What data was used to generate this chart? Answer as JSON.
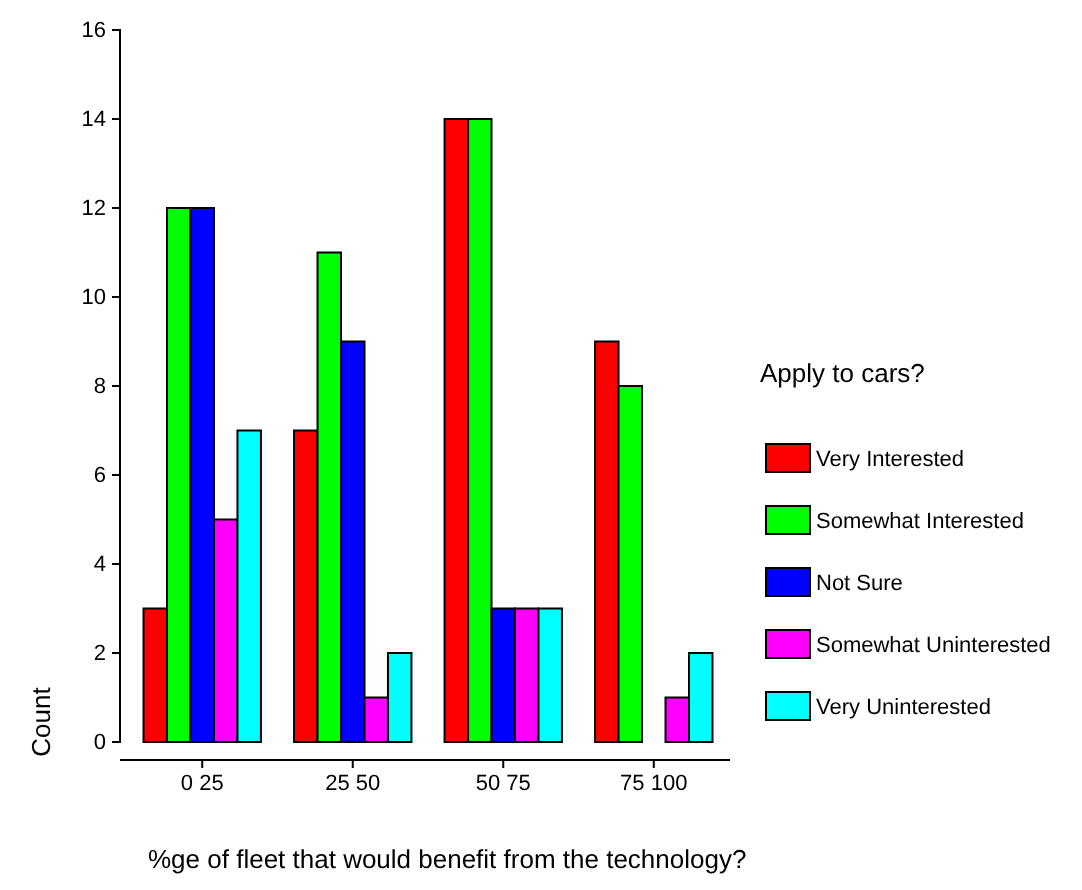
{
  "chart_data": {
    "type": "bar",
    "xlabel": "%ge of fleet that would benefit from the technology?",
    "ylabel": "Count",
    "legend_title": "Apply to cars?",
    "legend": "right",
    "categories": [
      "0 25",
      "25 50",
      "50 75",
      "75 100"
    ],
    "series": [
      {
        "name": "Very Interested",
        "color": "#ff0000",
        "values": [
          3,
          7,
          14,
          9
        ]
      },
      {
        "name": "Somewhat Interested",
        "color": "#00ff00",
        "values": [
          12,
          11,
          14,
          8
        ]
      },
      {
        "name": "Not Sure",
        "color": "#0000ff",
        "values": [
          12,
          9,
          3,
          0
        ]
      },
      {
        "name": "Somewhat Uninterested",
        "color": "#ff00ff",
        "values": [
          5,
          1,
          3,
          1
        ]
      },
      {
        "name": "Very Uninterested",
        "color": "#00ffff",
        "values": [
          7,
          2,
          3,
          2
        ]
      }
    ],
    "ylim": [
      0,
      16
    ],
    "yticks": [
      0,
      2,
      4,
      6,
      8,
      10,
      12,
      14,
      16
    ],
    "grid": false
  }
}
